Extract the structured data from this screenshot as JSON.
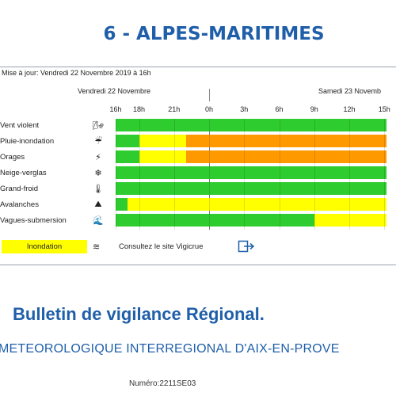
{
  "header": {
    "title": "6 - ALPES-MARITIMES"
  },
  "timeline": {
    "update_text": "Mise à jour: Vendredi 22 Novembre 2019 à 16h",
    "day1_label": "Vendredi 22 Novembre",
    "day2_label": "Samedi 23 Novemb",
    "hours": [
      "16h",
      "18h",
      "21h",
      "0h",
      "3h",
      "6h",
      "9h",
      "12h",
      "15h"
    ]
  },
  "colors": {
    "green": "#2ecc2e",
    "yellow": "#ffff00",
    "orange": "#ff9900"
  },
  "rows": [
    {
      "label": "Vent violent",
      "icon": "wind-icon",
      "glyph": "🌬",
      "segments": [
        {
          "from": "16h",
          "to": "15h",
          "level": "green"
        }
      ]
    },
    {
      "label": "Pluie-inondation",
      "icon": "rain-flood-icon",
      "glyph": "☔",
      "segments": [
        {
          "from": "16h",
          "to": "18h",
          "level": "green"
        },
        {
          "from": "18h",
          "to": "22h",
          "level": "yellow"
        },
        {
          "from": "22h",
          "to": "15h",
          "level": "orange"
        }
      ]
    },
    {
      "label": "Orages",
      "icon": "lightning-icon",
      "glyph": "⚡",
      "segments": [
        {
          "from": "16h",
          "to": "18h",
          "level": "green"
        },
        {
          "from": "18h",
          "to": "22h",
          "level": "yellow"
        },
        {
          "from": "22h",
          "to": "15h",
          "level": "orange"
        }
      ]
    },
    {
      "label": "Neige-verglas",
      "icon": "snowflake-icon",
      "glyph": "❄",
      "segments": [
        {
          "from": "16h",
          "to": "15h",
          "level": "green"
        }
      ]
    },
    {
      "label": "Grand-froid",
      "icon": "thermometer-icon",
      "glyph": "🌡",
      "segments": [
        {
          "from": "16h",
          "to": "15h",
          "level": "green"
        }
      ]
    },
    {
      "label": "Avalanches",
      "icon": "avalanche-icon",
      "glyph": "⛰",
      "segments": [
        {
          "from": "16h",
          "to": "17h",
          "level": "green"
        },
        {
          "from": "17h",
          "to": "15h",
          "level": "yellow"
        }
      ]
    },
    {
      "label": "Vagues-submersion",
      "icon": "waves-icon",
      "glyph": "🌊",
      "segments": [
        {
          "from": "16h",
          "to": "9h",
          "level": "green"
        },
        {
          "from": "9h",
          "to": "15h",
          "level": "yellow"
        }
      ]
    }
  ],
  "legend": {
    "label": "Inondation",
    "icon": "flood-icon",
    "glyph": "≋",
    "link_text": "Consultez le site Vigicrue",
    "link_icon": "exit-icon"
  },
  "bulletin": {
    "title": "Bulletin de vigilance Régional.",
    "center": "METEOROLOGIQUE INTERREGIONAL D'AIX-EN-PROVE",
    "number": "Numéro:2211SE03"
  }
}
